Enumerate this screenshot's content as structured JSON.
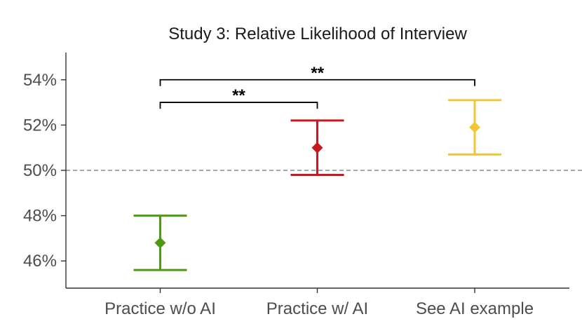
{
  "chart_data": {
    "type": "errorbar",
    "title": "Study 3: Relative Likelihood of Interview",
    "xlabel": "",
    "ylabel": "",
    "ylim": [
      44.8,
      55.2
    ],
    "yticks": [
      46,
      48,
      50,
      52,
      54
    ],
    "ytick_labels": [
      "46%",
      "48%",
      "50%",
      "52%",
      "54%"
    ],
    "reference_line": 50,
    "categories": [
      "Practice w/o AI",
      "Practice w/ AI",
      "See AI example"
    ],
    "points": [
      {
        "category": "Practice w/o AI",
        "value": 46.8,
        "lower": 45.6,
        "upper": 48.0,
        "color": "#4d9a13"
      },
      {
        "category": "Practice w/ AI",
        "value": 51.0,
        "lower": 49.8,
        "upper": 52.2,
        "color": "#c71a1f"
      },
      {
        "category": "See AI example",
        "value": 51.9,
        "lower": 50.7,
        "upper": 53.1,
        "color": "#f2c737"
      }
    ],
    "significance": [
      {
        "from": "Practice w/o AI",
        "to": "Practice w/ AI",
        "label": "**",
        "y": 53.0
      },
      {
        "from": "Practice w/o AI",
        "to": "See AI example",
        "label": "**",
        "y": 54.0
      }
    ],
    "grid": false,
    "legend": "none"
  }
}
